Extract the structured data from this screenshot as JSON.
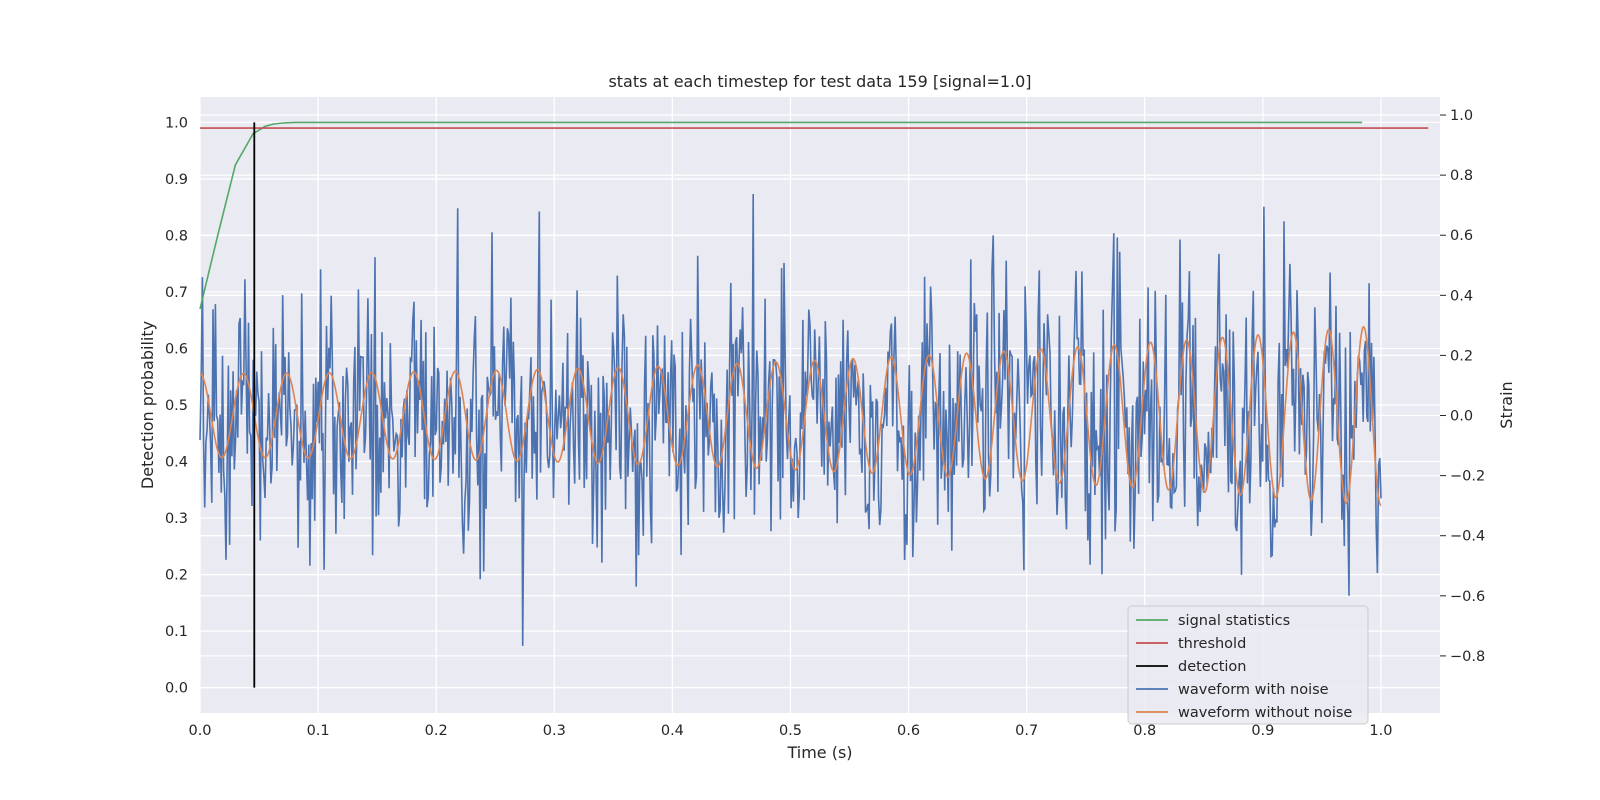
{
  "chart_data": {
    "type": "line",
    "title": "stats at each timestep for test data 159 [signal=1.0]",
    "xlabel": "Time (s)",
    "ylabel_left": "Detection probability",
    "ylabel_right": "Strain",
    "xlim": [
      0.0,
      1.05
    ],
    "ylim_left": [
      -0.045,
      1.045
    ],
    "ylim_right": [
      -0.99,
      1.06
    ],
    "x_ticks": [
      "0.0",
      "0.1",
      "0.2",
      "0.3",
      "0.4",
      "0.5",
      "0.6",
      "0.7",
      "0.8",
      "0.9",
      "1.0"
    ],
    "y_ticks_left": [
      "0.0",
      "0.1",
      "0.2",
      "0.3",
      "0.4",
      "0.5",
      "0.6",
      "0.7",
      "0.8",
      "0.9",
      "1.0"
    ],
    "y_ticks_right": [
      "−0.8",
      "−0.6",
      "−0.4",
      "−0.2",
      "0.0",
      "0.2",
      "0.4",
      "0.6",
      "0.8",
      "1.0"
    ],
    "grid": true,
    "legend_position": "bottom-right",
    "series": [
      {
        "name": "signal statistics",
        "axis": "left",
        "color": "#55a868",
        "x": [
          0.0,
          0.015,
          0.03,
          0.045,
          0.055,
          0.062,
          0.07,
          0.08,
          0.1,
          0.2,
          0.4,
          0.6,
          0.8,
          0.984
        ],
        "y": [
          0.67,
          0.8,
          0.925,
          0.98,
          0.993,
          0.997,
          0.999,
          1.0,
          1.0,
          1.0,
          1.0,
          1.0,
          1.0,
          1.0
        ]
      },
      {
        "name": "threshold",
        "axis": "left",
        "color": "#c44e52",
        "x": [
          0.0,
          1.04
        ],
        "y": [
          0.99,
          0.99
        ]
      },
      {
        "name": "detection",
        "axis": "left",
        "color": "#000000",
        "x": [
          0.046,
          0.046
        ],
        "y": [
          0.0,
          1.0
        ]
      },
      {
        "name": "waveform with noise",
        "axis": "right",
        "color": "#4c72b0",
        "description_x": "1000 samples evenly spaced from 0.0 to 1.0",
        "noise_amplitude_approx": 0.22,
        "min": -0.92,
        "max": 1.0
      },
      {
        "name": "waveform without noise",
        "axis": "right",
        "color": "#dd8452",
        "x_range": [
          0.0,
          1.0
        ],
        "amplitude_start": 0.14,
        "amplitude_end": 0.3,
        "frequency_start_hz": 27,
        "frequency_end_hz": 34
      }
    ]
  }
}
